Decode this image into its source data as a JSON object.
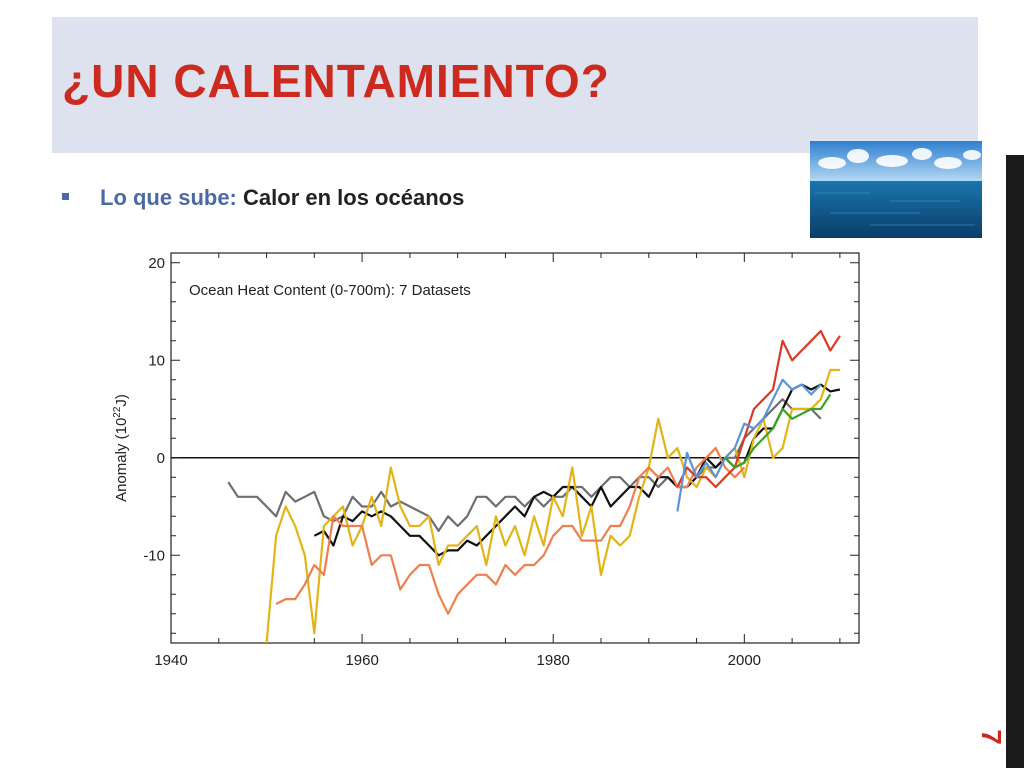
{
  "slide": {
    "title": "¿UN CALENTAMIENTO?",
    "bullet_prefix": "Lo que sube:",
    "bullet_main": "Calor en los océanos",
    "page_number": "7"
  },
  "colors": {
    "title": "#cc2a1f",
    "title_band": "#dde2ee",
    "bullet_prefix": "#4b6aa3",
    "right_bar": "#1b1b1b"
  },
  "images": {
    "ocean_photo": "ocean-horizon-photo"
  },
  "chart_data": {
    "type": "line",
    "title": "Ocean Heat Content (0-700m): 7 Datasets",
    "xlabel": "",
    "ylabel": "Anomaly (10²²J)",
    "xlim": [
      1940,
      2012
    ],
    "ylim": [
      -19,
      21
    ],
    "xticks": [
      1940,
      1960,
      1980,
      2000
    ],
    "yticks": [
      -10,
      0,
      10,
      20
    ],
    "zero_line": true,
    "grid": false,
    "legend": "none",
    "series": [
      {
        "color": "#6e6e6e",
        "x": [
          1946,
          1947,
          1948,
          1949,
          1950,
          1951,
          1952,
          1953,
          1954,
          1955,
          1956,
          1957,
          1958,
          1959,
          1960,
          1961,
          1962,
          1963,
          1964,
          1965,
          1966,
          1967,
          1968,
          1969,
          1970,
          1971,
          1972,
          1973,
          1974,
          1975,
          1976,
          1977,
          1978,
          1979,
          1980,
          1981,
          1982,
          1983,
          1984,
          1985,
          1986,
          1987,
          1988,
          1989,
          1990,
          1991,
          1992,
          1993,
          1994,
          1995,
          1996,
          1997,
          1998,
          1999,
          2000,
          2001,
          2002,
          2003,
          2004,
          2005,
          2006,
          2007,
          2008
        ],
        "y": [
          -2.5,
          -4,
          -4,
          -4,
          -5,
          -6,
          -3.5,
          -4.5,
          -4,
          -3.5,
          -6,
          -6.5,
          -6,
          -4,
          -5,
          -5,
          -3.5,
          -5,
          -4.5,
          -5,
          -5.5,
          -6,
          -7.5,
          -6,
          -7,
          -6,
          -4,
          -4,
          -5,
          -4,
          -4,
          -5,
          -4,
          -5,
          -4,
          -4,
          -3,
          -3,
          -4,
          -3,
          -2,
          -2,
          -3,
          -2,
          -2,
          -3,
          -2,
          -3,
          -3,
          -2,
          -1,
          -1,
          0,
          0,
          2,
          3,
          4,
          5,
          6,
          5,
          5,
          5,
          4
        ]
      },
      {
        "color": "#111111",
        "x": [
          1955,
          1956,
          1957,
          1958,
          1959,
          1960,
          1961,
          1962,
          1963,
          1964,
          1965,
          1966,
          1967,
          1968,
          1969,
          1970,
          1971,
          1972,
          1973,
          1974,
          1975,
          1976,
          1977,
          1978,
          1979,
          1980,
          1981,
          1982,
          1983,
          1984,
          1985,
          1986,
          1987,
          1988,
          1989,
          1990,
          1991,
          1992,
          1993,
          1994,
          1995,
          1996,
          1997,
          1998,
          1999,
          2000,
          2001,
          2002,
          2003,
          2004,
          2005,
          2006,
          2007,
          2008,
          2009,
          2010
        ],
        "y": [
          -8,
          -7.5,
          -9,
          -6,
          -6.5,
          -5.5,
          -6,
          -5.5,
          -6,
          -7,
          -8,
          -8,
          -9,
          -10,
          -9.5,
          -9.5,
          -8.5,
          -9,
          -8,
          -7,
          -6,
          -5,
          -6,
          -4,
          -3.5,
          -4,
          -3,
          -3,
          -4,
          -5,
          -3,
          -5,
          -4,
          -3,
          -3,
          -4,
          -2,
          -2,
          -3,
          -3,
          -2,
          0,
          -1,
          0,
          -1,
          -0.5,
          2,
          3,
          3,
          5,
          7,
          7.5,
          7,
          7.5,
          6.8,
          7
        ]
      },
      {
        "color": "#e3b417",
        "x": [
          1950,
          1951,
          1952,
          1953,
          1954,
          1955,
          1956,
          1957,
          1958,
          1959,
          1960,
          1961,
          1962,
          1963,
          1964,
          1965,
          1966,
          1967,
          1968,
          1969,
          1970,
          1971,
          1972,
          1973,
          1974,
          1975,
          1976,
          1977,
          1978,
          1979,
          1980,
          1981,
          1982,
          1983,
          1984,
          1985,
          1986,
          1987,
          1988,
          1989,
          1990,
          1991,
          1992,
          1993,
          1994,
          1995,
          1996,
          1997,
          1998,
          1999,
          2000,
          2001,
          2002,
          2003,
          2004,
          2005,
          2006,
          2007,
          2008,
          2009,
          2010
        ],
        "y": [
          -19,
          -8,
          -5,
          -7,
          -10,
          -18,
          -7,
          -6,
          -5,
          -9,
          -7,
          -4,
          -7,
          -1,
          -5,
          -7,
          -7,
          -6,
          -11,
          -9,
          -9,
          -8,
          -7,
          -11,
          -6,
          -9,
          -7,
          -10,
          -6,
          -9,
          -4,
          -6,
          -1,
          -8,
          -5,
          -12,
          -8,
          -9,
          -8,
          -4,
          -1,
          4,
          0,
          1,
          -2,
          -3,
          -1,
          -2,
          0,
          1,
          -2,
          2,
          4,
          0,
          1,
          5,
          5,
          5,
          6,
          9,
          9
        ]
      },
      {
        "color": "#ef7f4e",
        "x": [
          1951,
          1952,
          1953,
          1954,
          1955,
          1956,
          1957,
          1958,
          1959,
          1960,
          1961,
          1962,
          1963,
          1964,
          1965,
          1966,
          1967,
          1968,
          1969,
          1970,
          1971,
          1972,
          1973,
          1974,
          1975,
          1976,
          1977,
          1978,
          1979,
          1980,
          1981,
          1982,
          1983,
          1984,
          1985,
          1986,
          1987,
          1988,
          1989,
          1990,
          1991,
          1992,
          1993,
          1994,
          1995,
          1996,
          1997,
          1998,
          1999,
          2000
        ],
        "y": [
          -15,
          -14.5,
          -14.5,
          -13,
          -11,
          -12,
          -6,
          -7,
          -7,
          -7,
          -11,
          -10,
          -10,
          -13.5,
          -12,
          -11,
          -11,
          -14,
          -16,
          -14,
          -13,
          -12,
          -12,
          -13,
          -11,
          -12,
          -11,
          -11,
          -10,
          -8,
          -7,
          -7,
          -8.5,
          -8.5,
          -8.5,
          -7,
          -7,
          -5,
          -2,
          -1,
          -2,
          -1,
          -3,
          -3,
          -1,
          0,
          1,
          -1,
          -2,
          -1
        ]
      },
      {
        "color": "#d93a24",
        "x": [
          1993,
          1994,
          1995,
          1996,
          1997,
          1998,
          1999,
          2000,
          2001,
          2002,
          2003,
          2004,
          2005,
          2006,
          2007,
          2008,
          2009,
          2010
        ],
        "y": [
          -3,
          -1,
          -2,
          -2,
          -3,
          -2,
          -1,
          2,
          5,
          6,
          7,
          12,
          10,
          11,
          12,
          13,
          11,
          12.5
        ]
      },
      {
        "color": "#5b94d8",
        "x": [
          1993,
          1994,
          1995,
          1996,
          1997,
          1998,
          1999,
          2000,
          2001,
          2002,
          2003,
          2004,
          2005,
          2006,
          2007,
          2008
        ],
        "y": [
          -5.5,
          0.5,
          -2,
          -0.5,
          -2,
          0,
          1,
          3.5,
          3,
          4,
          6,
          8,
          7,
          7.5,
          6.5,
          7.5
        ]
      },
      {
        "color": "#3aa228",
        "x": [
          1998,
          1999,
          2000,
          2001,
          2002,
          2003,
          2004,
          2005,
          2006,
          2007,
          2008,
          2009
        ],
        "y": [
          0,
          -1,
          -0.5,
          1,
          2,
          3,
          5,
          4,
          4.5,
          5,
          5,
          6.5
        ]
      }
    ]
  }
}
